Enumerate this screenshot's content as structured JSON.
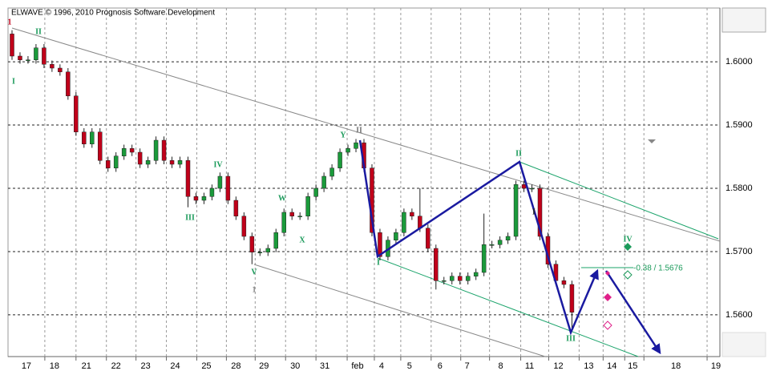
{
  "chart_data": {
    "type": "candlestick",
    "title": "ELWAVE © 1996, 2010 Prognosis Software Development",
    "up_color": "#1a9a3a",
    "down_color": "#c0001a",
    "grid": true,
    "ylim": [
      1.5534,
      1.6085
    ],
    "yticks": [
      {
        "value": 1.6,
        "label": "1.6000"
      },
      {
        "value": 1.59,
        "label": "1.5900"
      },
      {
        "value": 1.58,
        "label": "1.5800"
      },
      {
        "value": 1.57,
        "label": "1.5700"
      },
      {
        "value": 1.56,
        "label": "1.5600"
      }
    ],
    "xlim": [
      0,
      89
    ],
    "xticks": [
      {
        "value": 2.3,
        "label": "17"
      },
      {
        "value": 5.8,
        "label": "18"
      },
      {
        "value": 9.8,
        "label": "21"
      },
      {
        "value": 13.5,
        "label": "22"
      },
      {
        "value": 17.2,
        "label": "23"
      },
      {
        "value": 20.9,
        "label": "24"
      },
      {
        "value": 24.8,
        "label": "25"
      },
      {
        "value": 28.5,
        "label": "28"
      },
      {
        "value": 32,
        "label": "29"
      },
      {
        "value": 35.9,
        "label": "30"
      },
      {
        "value": 39.6,
        "label": "31"
      },
      {
        "value": 43.7,
        "label": "feb"
      },
      {
        "value": 46.7,
        "label": "4"
      },
      {
        "value": 50.2,
        "label": "5"
      },
      {
        "value": 54,
        "label": "6"
      },
      {
        "value": 57.4,
        "label": "7"
      },
      {
        "value": 61.6,
        "label": "8"
      },
      {
        "value": 65.2,
        "label": "11"
      },
      {
        "value": 68.8,
        "label": "12"
      },
      {
        "value": 72.6,
        "label": "13"
      },
      {
        "value": 75.5,
        "label": "14"
      },
      {
        "value": 78.1,
        "label": "15"
      },
      {
        "value": 83.5,
        "label": "18"
      },
      {
        "value": 88.5,
        "label": "19"
      }
    ],
    "xgrid": [
      4.6,
      8.5,
      12.3,
      16.0,
      19.8,
      23.6,
      27.3,
      30.9,
      34.7,
      38.5,
      42.4,
      45.8,
      49.1,
      52.9,
      56.6,
      60.2,
      64.1,
      67.6,
      71.4,
      74.4,
      77.1,
      79.5,
      87.4
    ],
    "x": [
      0.5,
      1.5,
      2.5,
      3.5,
      4.5,
      5.5,
      6.5,
      7.5,
      8.5,
      9.5,
      10.5,
      11.5,
      12.5,
      13.5,
      14.5,
      15.5,
      16.5,
      17.5,
      18.5,
      19.5,
      20.5,
      21.5,
      22.5,
      23.5,
      24.5,
      25.5,
      26.5,
      27.5,
      28.5,
      29.5,
      30.5,
      31.5,
      32.5,
      33.5,
      34.5,
      35.5,
      36.5,
      37.5,
      38.5,
      39.5,
      40.5,
      41.5,
      42.5,
      43.5,
      44.5,
      45.5,
      46.5,
      47.5,
      48.5,
      49.5,
      50.5,
      51.5,
      52.5,
      53.5,
      54.5,
      55.5,
      56.5,
      57.5,
      58.5,
      59.5,
      60.5,
      61.5,
      62.5,
      63.5,
      64.5,
      65.5,
      66.5,
      67.5,
      68.5,
      69.5,
      70.5
    ],
    "open": [
      1.6044,
      1.6009,
      1.6003,
      1.6003,
      1.6022,
      1.5996,
      1.599,
      1.5984,
      1.5946,
      1.5889,
      1.587,
      1.5889,
      1.5844,
      1.5832,
      1.5851,
      1.5863,
      1.5857,
      1.5838,
      1.5844,
      1.5876,
      1.5844,
      1.5838,
      1.5844,
      1.5787,
      1.5781,
      1.5787,
      1.58,
      1.5819,
      1.5781,
      1.5756,
      1.5724,
      1.5699,
      1.5699,
      1.5705,
      1.573,
      1.5762,
      1.5756,
      1.5756,
      1.5787,
      1.58,
      1.5819,
      1.5832,
      1.5857,
      1.5863,
      1.5872,
      1.5832,
      1.573,
      1.5692,
      1.5718,
      1.573,
      1.5762,
      1.5756,
      1.5737,
      1.5705,
      1.5654,
      1.5654,
      1.5661,
      1.5654,
      1.5661,
      1.5667,
      1.5711,
      1.5711,
      1.5718,
      1.5724,
      1.5806,
      1.58,
      1.58,
      1.5724,
      1.568,
      1.5654,
      1.5648
    ],
    "high": [
      1.605,
      1.6015,
      1.6009,
      1.6028,
      1.6028,
      1.6002,
      1.5996,
      1.599,
      1.5952,
      1.5895,
      1.5895,
      1.5895,
      1.585,
      1.5857,
      1.5869,
      1.5869,
      1.5863,
      1.585,
      1.5882,
      1.5882,
      1.585,
      1.585,
      1.585,
      1.5793,
      1.5793,
      1.5806,
      1.5825,
      1.5825,
      1.5787,
      1.5762,
      1.573,
      1.5705,
      1.5711,
      1.5736,
      1.5768,
      1.5768,
      1.5762,
      1.5793,
      1.5806,
      1.5825,
      1.5838,
      1.5863,
      1.5869,
      1.5878,
      1.5878,
      1.5838,
      1.5736,
      1.5724,
      1.5736,
      1.5768,
      1.5768,
      1.58,
      1.5743,
      1.5711,
      1.566,
      1.5667,
      1.5667,
      1.5667,
      1.5673,
      1.576,
      1.5717,
      1.5724,
      1.573,
      1.5812,
      1.5812,
      1.5806,
      1.5806,
      1.573,
      1.5686,
      1.566,
      1.5654
    ],
    "low": [
      1.6003,
      1.5997,
      1.5997,
      1.5997,
      1.599,
      1.5984,
      1.5978,
      1.594,
      1.5883,
      1.5864,
      1.5864,
      1.5838,
      1.5826,
      1.5826,
      1.5845,
      1.5851,
      1.5832,
      1.5832,
      1.5838,
      1.5838,
      1.5832,
      1.5832,
      1.577,
      1.5775,
      1.5775,
      1.5781,
      1.5794,
      1.5775,
      1.575,
      1.5718,
      1.568,
      1.5693,
      1.5693,
      1.5699,
      1.5724,
      1.575,
      1.575,
      1.575,
      1.5781,
      1.5794,
      1.5813,
      1.5826,
      1.5851,
      1.5857,
      1.5826,
      1.5724,
      1.5686,
      1.5686,
      1.5712,
      1.5724,
      1.575,
      1.5731,
      1.5699,
      1.564,
      1.5648,
      1.5648,
      1.5648,
      1.5648,
      1.5655,
      1.5661,
      1.5705,
      1.5705,
      1.5712,
      1.5718,
      1.5794,
      1.5794,
      1.5718,
      1.5674,
      1.5648,
      1.5642,
      1.5578
    ],
    "close": [
      1.6009,
      1.6003,
      1.6003,
      1.6022,
      1.5996,
      1.599,
      1.5984,
      1.5946,
      1.5889,
      1.587,
      1.5889,
      1.5844,
      1.5832,
      1.5851,
      1.5863,
      1.5857,
      1.5838,
      1.5844,
      1.5876,
      1.5844,
      1.5838,
      1.5844,
      1.5787,
      1.5781,
      1.5787,
      1.58,
      1.5819,
      1.5781,
      1.5756,
      1.5724,
      1.5699,
      1.5699,
      1.5705,
      1.573,
      1.5762,
      1.5756,
      1.5756,
      1.5787,
      1.58,
      1.5819,
      1.5832,
      1.5857,
      1.5863,
      1.5872,
      1.5832,
      1.573,
      1.5692,
      1.5718,
      1.573,
      1.5762,
      1.5756,
      1.5737,
      1.5705,
      1.5654,
      1.5654,
      1.5661,
      1.5654,
      1.5661,
      1.5667,
      1.5711,
      1.5711,
      1.5718,
      1.5724,
      1.5806,
      1.58,
      1.58,
      1.5724,
      1.568,
      1.5654,
      1.5648,
      1.5604
    ],
    "wave_labels": [
      "1",
      "II",
      "I",
      "III",
      "IV",
      "V",
      "1",
      "W",
      "X",
      "Y",
      "II",
      "I",
      "II",
      "I",
      "III",
      "IV"
    ],
    "annotation": "-0.38 / 1.5676"
  }
}
